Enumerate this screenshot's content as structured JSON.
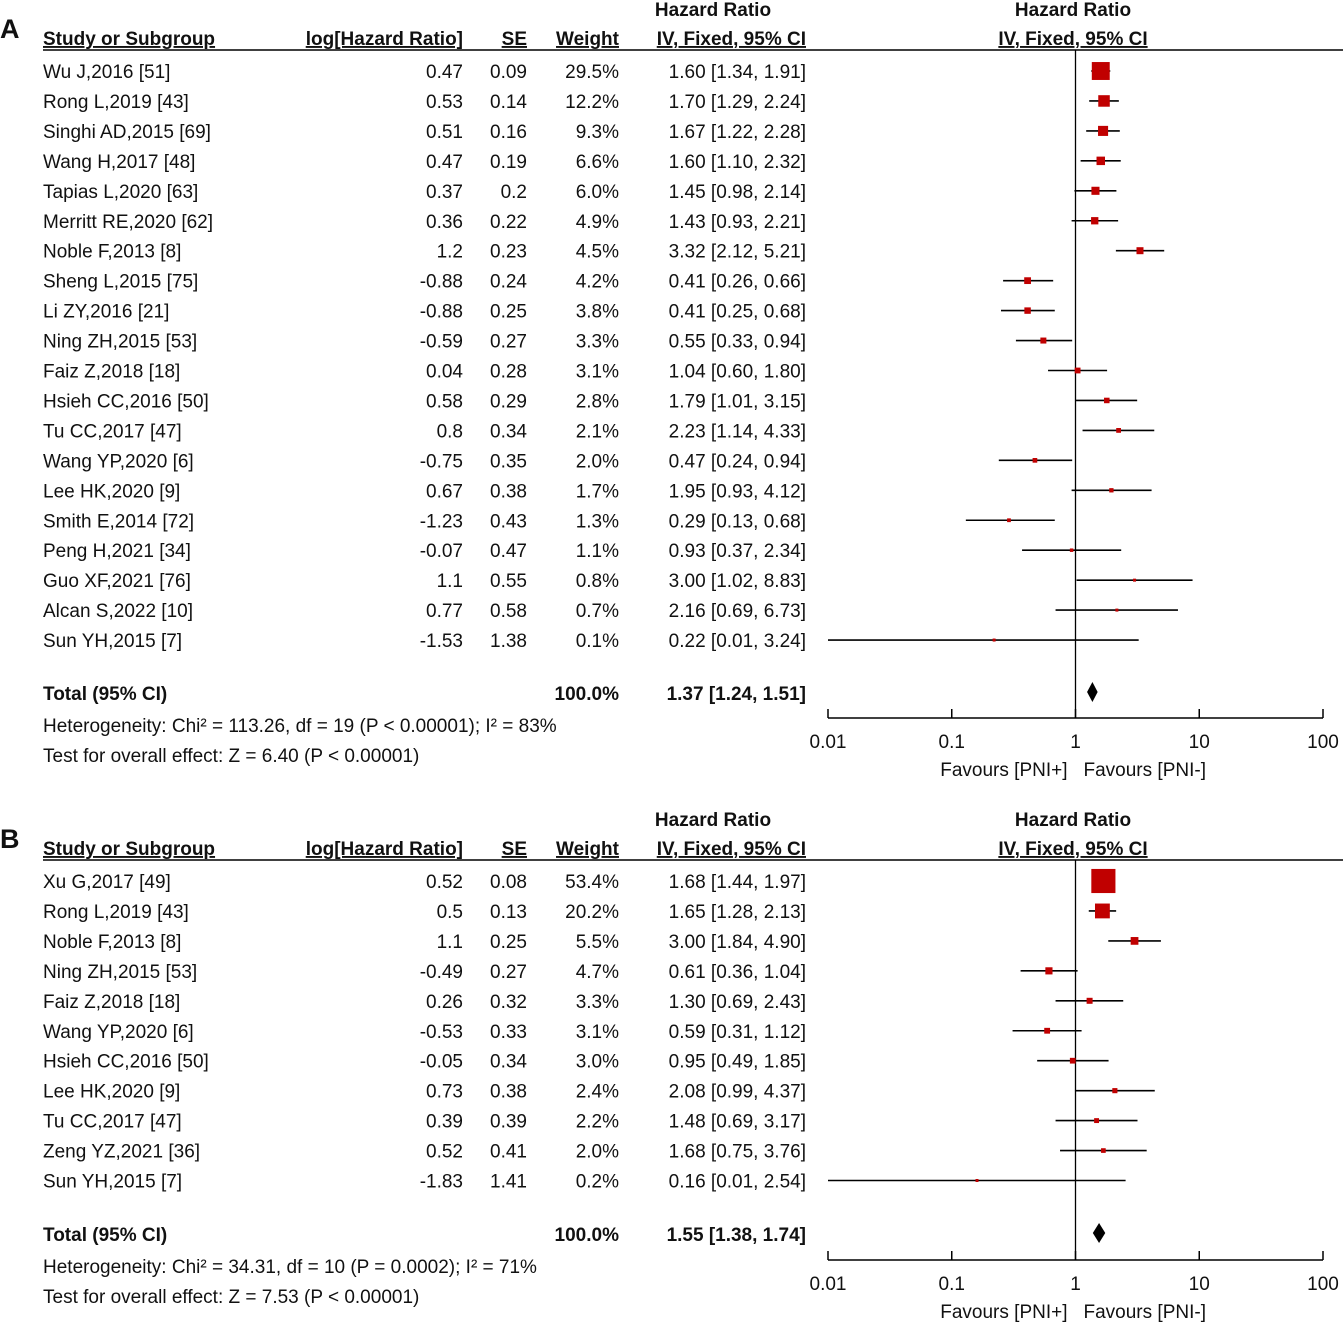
{
  "colors": {
    "marker": "#c00000",
    "line": "#000000",
    "text": "#111111"
  },
  "axis": {
    "ticks": [
      "0.01",
      "0.1",
      "1",
      "10",
      "100"
    ],
    "favours_left": "Favours [PNI+]",
    "favours_right": "Favours [PNI-]"
  },
  "chart_data": [
    {
      "type": "forest",
      "panel_label": "A",
      "header": {
        "study": "Study or Subgroup",
        "loghr": "log[Hazard Ratio]",
        "se": "SE",
        "weight": "Weight",
        "hr_title": "Hazard Ratio",
        "hr_method": "IV, Fixed, 95% CI",
        "plot_title": "Hazard Ratio",
        "plot_method": "IV, Fixed, 95% CI"
      },
      "x_scale": "log",
      "xlim": [
        0.01,
        100
      ],
      "studies": [
        {
          "study": "Wu J,2016 [51]",
          "loghr": "0.47",
          "se": "0.09",
          "weight": "29.5%",
          "hr": "1.60 [1.34, 1.91]",
          "est": 1.6,
          "lo": 1.34,
          "hi": 1.91,
          "w": 29.5
        },
        {
          "study": "Rong L,2019 [43]",
          "loghr": "0.53",
          "se": "0.14",
          "weight": "12.2%",
          "hr": "1.70 [1.29, 2.24]",
          "est": 1.7,
          "lo": 1.29,
          "hi": 2.24,
          "w": 12.2
        },
        {
          "study": "Singhi AD,2015 [69]",
          "loghr": "0.51",
          "se": "0.16",
          "weight": "9.3%",
          "hr": "1.67 [1.22, 2.28]",
          "est": 1.67,
          "lo": 1.22,
          "hi": 2.28,
          "w": 9.3
        },
        {
          "study": "Wang H,2017 [48]",
          "loghr": "0.47",
          "se": "0.19",
          "weight": "6.6%",
          "hr": "1.60 [1.10, 2.32]",
          "est": 1.6,
          "lo": 1.1,
          "hi": 2.32,
          "w": 6.6
        },
        {
          "study": "Tapias L,2020 [63]",
          "loghr": "0.37",
          "se": "0.2",
          "weight": "6.0%",
          "hr": "1.45 [0.98, 2.14]",
          "est": 1.45,
          "lo": 0.98,
          "hi": 2.14,
          "w": 6.0
        },
        {
          "study": "Merritt RE,2020 [62]",
          "loghr": "0.36",
          "se": "0.22",
          "weight": "4.9%",
          "hr": "1.43 [0.93, 2.21]",
          "est": 1.43,
          "lo": 0.93,
          "hi": 2.21,
          "w": 4.9
        },
        {
          "study": "Noble F,2013 [8]",
          "loghr": "1.2",
          "se": "0.23",
          "weight": "4.5%",
          "hr": "3.32 [2.12, 5.21]",
          "est": 3.32,
          "lo": 2.12,
          "hi": 5.21,
          "w": 4.5
        },
        {
          "study": "Sheng L,2015 [75]",
          "loghr": "-0.88",
          "se": "0.24",
          "weight": "4.2%",
          "hr": "0.41 [0.26, 0.66]",
          "est": 0.41,
          "lo": 0.26,
          "hi": 0.66,
          "w": 4.2
        },
        {
          "study": "Li ZY,2016 [21]",
          "loghr": "-0.88",
          "se": "0.25",
          "weight": "3.8%",
          "hr": "0.41 [0.25, 0.68]",
          "est": 0.41,
          "lo": 0.25,
          "hi": 0.68,
          "w": 3.8
        },
        {
          "study": "Ning ZH,2015 [53]",
          "loghr": "-0.59",
          "se": "0.27",
          "weight": "3.3%",
          "hr": "0.55 [0.33, 0.94]",
          "est": 0.55,
          "lo": 0.33,
          "hi": 0.94,
          "w": 3.3
        },
        {
          "study": "Faiz Z,2018 [18]",
          "loghr": "0.04",
          "se": "0.28",
          "weight": "3.1%",
          "hr": "1.04 [0.60, 1.80]",
          "est": 1.04,
          "lo": 0.6,
          "hi": 1.8,
          "w": 3.1
        },
        {
          "study": "Hsieh CC,2016 [50]",
          "loghr": "0.58",
          "se": "0.29",
          "weight": "2.8%",
          "hr": "1.79 [1.01, 3.15]",
          "est": 1.79,
          "lo": 1.01,
          "hi": 3.15,
          "w": 2.8
        },
        {
          "study": "Tu CC,2017 [47]",
          "loghr": "0.8",
          "se": "0.34",
          "weight": "2.1%",
          "hr": "2.23 [1.14, 4.33]",
          "est": 2.23,
          "lo": 1.14,
          "hi": 4.33,
          "w": 2.1
        },
        {
          "study": "Wang YP,2020 [6]",
          "loghr": "-0.75",
          "se": "0.35",
          "weight": "2.0%",
          "hr": "0.47 [0.24, 0.94]",
          "est": 0.47,
          "lo": 0.24,
          "hi": 0.94,
          "w": 2.0
        },
        {
          "study": "Lee HK,2020 [9]",
          "loghr": "0.67",
          "se": "0.38",
          "weight": "1.7%",
          "hr": "1.95 [0.93, 4.12]",
          "est": 1.95,
          "lo": 0.93,
          "hi": 4.12,
          "w": 1.7
        },
        {
          "study": "Smith E,2014 [72]",
          "loghr": "-1.23",
          "se": "0.43",
          "weight": "1.3%",
          "hr": "0.29 [0.13, 0.68]",
          "est": 0.29,
          "lo": 0.13,
          "hi": 0.68,
          "w": 1.3
        },
        {
          "study": "Peng H,2021 [34]",
          "loghr": "-0.07",
          "se": "0.47",
          "weight": "1.1%",
          "hr": "0.93 [0.37, 2.34]",
          "est": 0.93,
          "lo": 0.37,
          "hi": 2.34,
          "w": 1.1
        },
        {
          "study": "Guo XF,2021 [76]",
          "loghr": "1.1",
          "se": "0.55",
          "weight": "0.8%",
          "hr": "3.00 [1.02, 8.83]",
          "est": 3.0,
          "lo": 1.02,
          "hi": 8.83,
          "w": 0.8
        },
        {
          "study": "Alcan S,2022 [10]",
          "loghr": "0.77",
          "se": "0.58",
          "weight": "0.7%",
          "hr": "2.16 [0.69, 6.73]",
          "est": 2.16,
          "lo": 0.69,
          "hi": 6.73,
          "w": 0.7
        },
        {
          "study": "Sun YH,2015 [7]",
          "loghr": "-1.53",
          "se": "1.38",
          "weight": "0.1%",
          "hr": "0.22 [0.01, 3.24]",
          "est": 0.22,
          "lo": 0.01,
          "hi": 3.24,
          "w": 0.1
        }
      ],
      "total": {
        "label": "Total (95% CI)",
        "weight": "100.0%",
        "hr": "1.37 [1.24, 1.51]",
        "est": 1.37,
        "lo": 1.24,
        "hi": 1.51
      },
      "heterogeneity": "Heterogeneity: Chi² = 113.26, df = 19 (P < 0.00001); I² = 83%",
      "overall_test": "Test for overall effect: Z = 6.40 (P < 0.00001)"
    },
    {
      "type": "forest",
      "panel_label": "B",
      "header": {
        "study": "Study or Subgroup",
        "loghr": "log[Hazard Ratio]",
        "se": "SE",
        "weight": "Weight",
        "hr_title": "Hazard Ratio",
        "hr_method": "IV, Fixed, 95% CI",
        "plot_title": "Hazard Ratio",
        "plot_method": "IV, Fixed, 95% CI"
      },
      "x_scale": "log",
      "xlim": [
        0.01,
        100
      ],
      "studies": [
        {
          "study": "Xu G,2017 [49]",
          "loghr": "0.52",
          "se": "0.08",
          "weight": "53.4%",
          "hr": "1.68 [1.44, 1.97]",
          "est": 1.68,
          "lo": 1.44,
          "hi": 1.97,
          "w": 53.4
        },
        {
          "study": "Rong L,2019 [43]",
          "loghr": "0.5",
          "se": "0.13",
          "weight": "20.2%",
          "hr": "1.65 [1.28, 2.13]",
          "est": 1.65,
          "lo": 1.28,
          "hi": 2.13,
          "w": 20.2
        },
        {
          "study": "Noble F,2013 [8]",
          "loghr": "1.1",
          "se": "0.25",
          "weight": "5.5%",
          "hr": "3.00 [1.84, 4.90]",
          "est": 3.0,
          "lo": 1.84,
          "hi": 4.9,
          "w": 5.5
        },
        {
          "study": "Ning ZH,2015 [53]",
          "loghr": "-0.49",
          "se": "0.27",
          "weight": "4.7%",
          "hr": "0.61 [0.36, 1.04]",
          "est": 0.61,
          "lo": 0.36,
          "hi": 1.04,
          "w": 4.7
        },
        {
          "study": "Faiz Z,2018 [18]",
          "loghr": "0.26",
          "se": "0.32",
          "weight": "3.3%",
          "hr": "1.30 [0.69, 2.43]",
          "est": 1.3,
          "lo": 0.69,
          "hi": 2.43,
          "w": 3.3
        },
        {
          "study": "Wang YP,2020 [6]",
          "loghr": "-0.53",
          "se": "0.33",
          "weight": "3.1%",
          "hr": "0.59 [0.31, 1.12]",
          "est": 0.59,
          "lo": 0.31,
          "hi": 1.12,
          "w": 3.1
        },
        {
          "study": "Hsieh CC,2016 [50]",
          "loghr": "-0.05",
          "se": "0.34",
          "weight": "3.0%",
          "hr": "0.95 [0.49, 1.85]",
          "est": 0.95,
          "lo": 0.49,
          "hi": 1.85,
          "w": 3.0
        },
        {
          "study": "Lee HK,2020 [9]",
          "loghr": "0.73",
          "se": "0.38",
          "weight": "2.4%",
          "hr": "2.08 [0.99, 4.37]",
          "est": 2.08,
          "lo": 0.99,
          "hi": 4.37,
          "w": 2.4
        },
        {
          "study": "Tu CC,2017 [47]",
          "loghr": "0.39",
          "se": "0.39",
          "weight": "2.2%",
          "hr": "1.48 [0.69, 3.17]",
          "est": 1.48,
          "lo": 0.69,
          "hi": 3.17,
          "w": 2.2
        },
        {
          "study": "Zeng YZ,2021 [36]",
          "loghr": "0.52",
          "se": "0.41",
          "weight": "2.0%",
          "hr": "1.68 [0.75, 3.76]",
          "est": 1.68,
          "lo": 0.75,
          "hi": 3.76,
          "w": 2.0
        },
        {
          "study": "Sun YH,2015 [7]",
          "loghr": "-1.83",
          "se": "1.41",
          "weight": "0.2%",
          "hr": "0.16 [0.01, 2.54]",
          "est": 0.16,
          "lo": 0.01,
          "hi": 2.54,
          "w": 0.2
        }
      ],
      "total": {
        "label": "Total (95% CI)",
        "weight": "100.0%",
        "hr": "1.55 [1.38, 1.74]",
        "est": 1.55,
        "lo": 1.38,
        "hi": 1.74
      },
      "heterogeneity": "Heterogeneity: Chi² = 34.31, df = 10 (P = 0.0002); I² = 71%",
      "overall_test": "Test for overall effect: Z = 7.53 (P < 0.00001)"
    }
  ]
}
